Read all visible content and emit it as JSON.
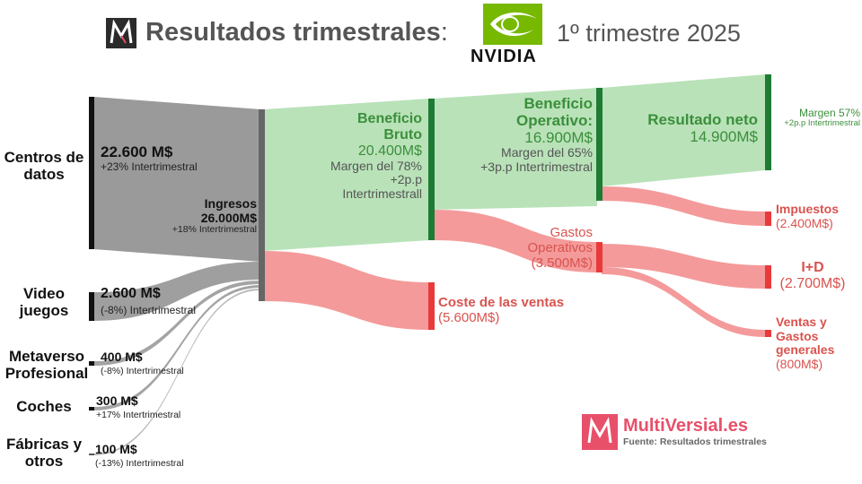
{
  "header": {
    "title": "Resultados trimestrales",
    "colon": ":",
    "period": "1º trimestre 2025",
    "company_logo_text": "NVIDIA",
    "brand_logo_icon": "m-logo-icon"
  },
  "sources": [
    {
      "name_line1": "Centros de",
      "name_line2": "datos",
      "value": "22.600 M$",
      "change": "+23% Intertrimestral"
    },
    {
      "name_line1": "Video",
      "name_line2": "juegos",
      "value": "2.600 M$",
      "change": "(-8%) Intertrimestral"
    },
    {
      "name_line1": "Metaverso",
      "name_line2": "Profesional",
      "value": "400 M$",
      "change": "(-8%) Intertrimestral"
    },
    {
      "name_line1": "Coches",
      "name_line2": "",
      "value": "300 M$",
      "change": "+17% Intertrimestral"
    },
    {
      "name_line1": "Fábricas y",
      "name_line2": "otros",
      "value": "100 M$",
      "change": "(-13%) Intertrimestral"
    }
  ],
  "revenue": {
    "label": "Ingresos",
    "value": "26.000M$",
    "change": "+18% Intertrimestral"
  },
  "gross_profit": {
    "line1": "Beneficio",
    "line2": "Bruto",
    "value": "20.400M$",
    "margin": "Margen del 78%",
    "change1": "+2p.p",
    "change2": "Intertrimestrall"
  },
  "cost_of_sales": {
    "label": "Coste de las ventas",
    "value": "(5.600M$)"
  },
  "operating_profit": {
    "line1": "Beneficio",
    "line2": "Operativo:",
    "value": "16.900M$",
    "margin": "Margen del 65%",
    "change": "+3p.p Intertrimestral"
  },
  "operating_expenses": {
    "line1": "Gastos",
    "line2": "Operativos",
    "value": "(3.500M$)"
  },
  "net_income": {
    "label": "Resultado neto",
    "value": "14.900M$",
    "margin": "Margen 57%",
    "change": "+2p.p Intertrimestral"
  },
  "taxes": {
    "label": "Impuestos",
    "value": "(2.400M$)"
  },
  "rd": {
    "label": "I+D",
    "value": "(2.700M$)"
  },
  "sga": {
    "line1": "Ventas y",
    "line2": "Gastos",
    "line3": "generales",
    "value": "(800M$)"
  },
  "footer": {
    "brand": "MultiVersial.es",
    "source": "Fuente: Resultados trimestrales"
  },
  "colors": {
    "grey_flow": "#9a9a9a",
    "green_flow": "#b9e2b9",
    "red_flow": "#f49a9a",
    "green_node": "#1e7b34",
    "red_node": "#e83a3a",
    "dark_node": "#111111",
    "brand_pink": "#e8506a"
  }
}
